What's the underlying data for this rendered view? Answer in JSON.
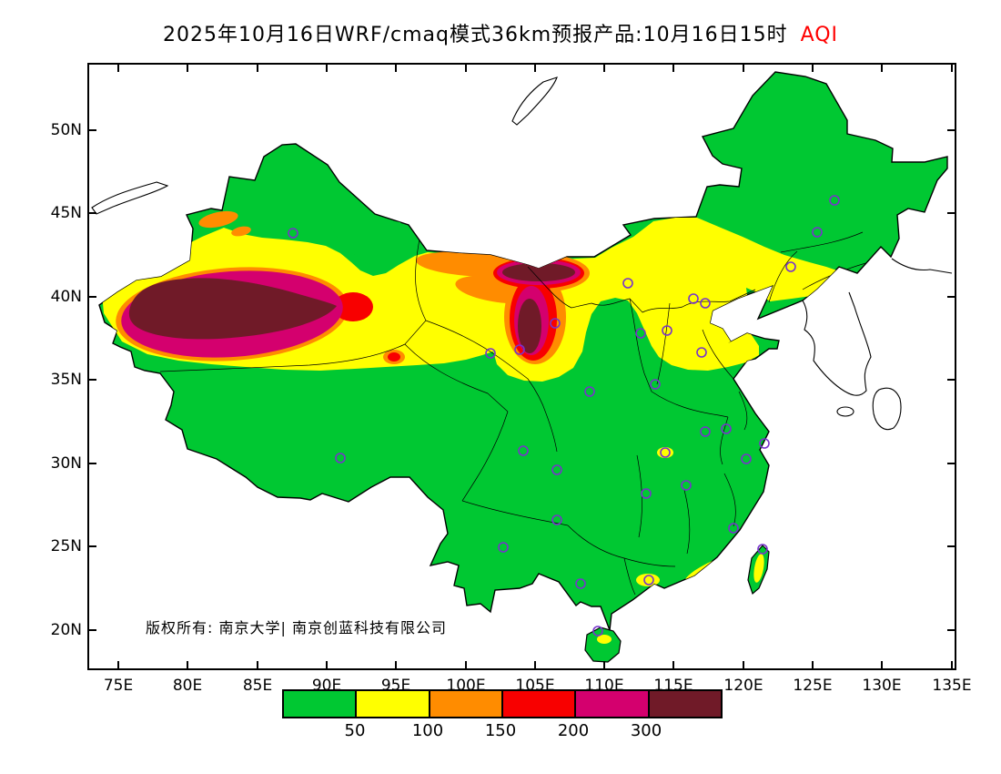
{
  "title": {
    "main": "2025年10月16日WRF/cmaq模式36km预报产品:10月16日15时",
    "aqi": "AQI",
    "aqi_color": "#ff0000"
  },
  "axes": {
    "lat_labels": [
      "50N",
      "45N",
      "40N",
      "35N",
      "30N",
      "25N",
      "20N"
    ],
    "lon_labels": [
      "75E",
      "80E",
      "85E",
      "90E",
      "95E",
      "100E",
      "105E",
      "110E",
      "115E",
      "120E",
      "125E",
      "130E",
      "135E"
    ]
  },
  "copyright": "版权所有: 南京大学| 南京创蓝科技有限公司",
  "legend": {
    "labels": [
      "50",
      "100",
      "150",
      "200",
      "300"
    ],
    "colors": [
      "#00c832",
      "#ffff00",
      "#ff8c00",
      "#f80000",
      "#d4006e",
      "#701a28"
    ]
  },
  "map": {
    "land_color": "#00c832",
    "sea_color": "#ffffff",
    "marker_color": "#7733cc",
    "frame_color": "#000000",
    "city_markers": [
      [
        322,
        256
      ],
      [
        374,
        503
      ],
      [
        539,
        388
      ],
      [
        571,
        384
      ],
      [
        610,
        355
      ],
      [
        690,
        311
      ],
      [
        762,
        328
      ],
      [
        775,
        333
      ],
      [
        733,
        363
      ],
      [
        704,
        366
      ],
      [
        771,
        387
      ],
      [
        720,
        422
      ],
      [
        648,
        430
      ],
      [
        575,
        495
      ],
      [
        612,
        516
      ],
      [
        612,
        571
      ],
      [
        553,
        601
      ],
      [
        638,
        641
      ],
      [
        713,
        637
      ],
      [
        657,
        693
      ],
      [
        710,
        542
      ],
      [
        731,
        497
      ],
      [
        754,
        533
      ],
      [
        775,
        474
      ],
      [
        798,
        471
      ],
      [
        840,
        487
      ],
      [
        820,
        504
      ],
      [
        806,
        580
      ],
      [
        838,
        603
      ],
      [
        869,
        293
      ],
      [
        898,
        255
      ],
      [
        917,
        220
      ]
    ]
  }
}
